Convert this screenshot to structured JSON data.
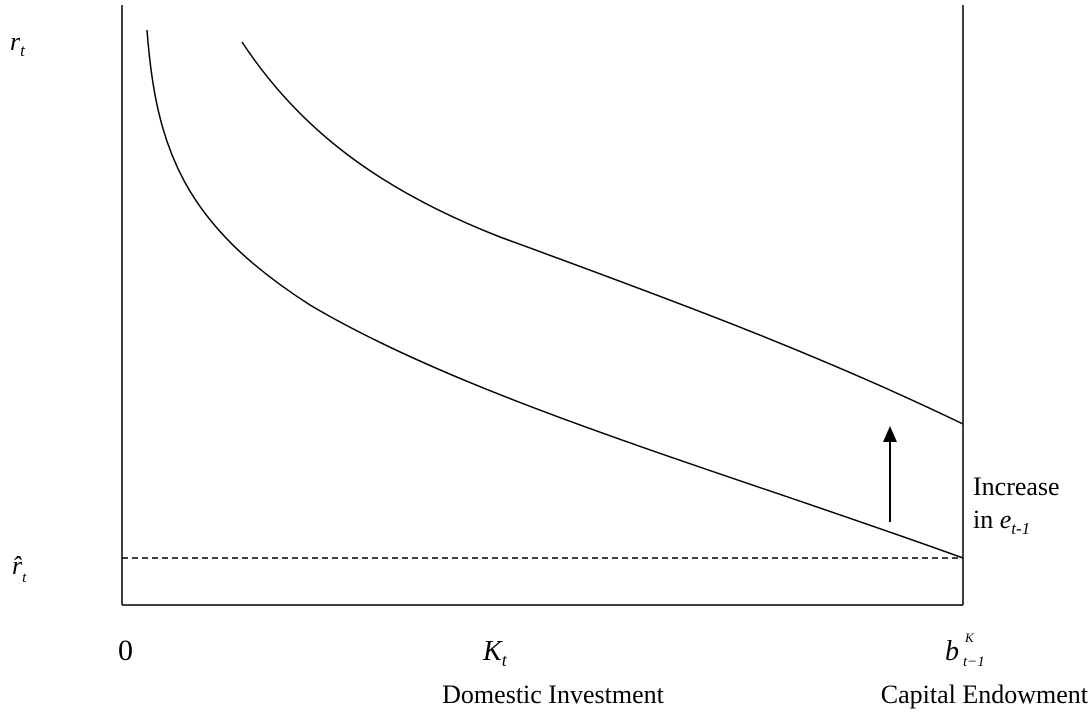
{
  "y_axis_label": {
    "base": "r",
    "sub": "t"
  },
  "floor_label": {
    "base": "r̂",
    "sub": "t"
  },
  "origin_label": "0",
  "x_axis_label": {
    "base": "K",
    "sub": "t",
    "caption": "Domestic Investment"
  },
  "right_axis_label": {
    "base": "b",
    "sup": "K",
    "sub": "t−1",
    "caption": "Capital Endowment"
  },
  "shift_annotation": {
    "line1": "Increase",
    "line2": "in ",
    "var": "e",
    "sub": "t-1"
  }
}
